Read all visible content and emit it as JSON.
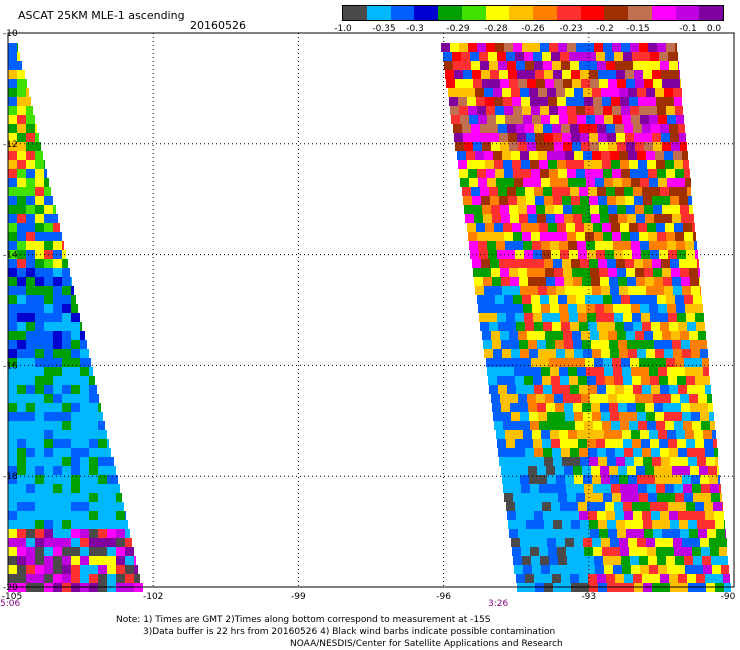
{
  "header": {
    "title": "ASCAT 25KM MLE-1 ascending",
    "date": "20160526"
  },
  "colorbar": {
    "colors": [
      "#4a4a4a",
      "#00b8ff",
      "#0060ff",
      "#0000d0",
      "#00a000",
      "#40e000",
      "#ffff00",
      "#ffc000",
      "#ff8000",
      "#ff3030",
      "#ff0000",
      "#a03000",
      "#c07050",
      "#ff00ff",
      "#c000e0",
      "#8000a0"
    ],
    "labels": [
      "-1.0",
      "-0.35",
      "-0.3",
      "-0.29",
      "-0.28",
      "-0.26",
      "-0.23",
      "-0.2",
      "-0.15",
      "-0.1",
      "0.0"
    ]
  },
  "map": {
    "lat_labels": [
      "-10",
      "-12",
      "-14",
      "-16",
      "-18",
      "-20"
    ],
    "lon_labels": [
      "-105",
      "-102",
      "-99",
      "-96",
      "-93",
      "-90"
    ],
    "time_labels": [
      "5:06",
      "3:26"
    ],
    "gridlines": true
  },
  "notes": {
    "line1": "Note: 1) Times are GMT 2)Times along bottom correspond to measurement at -15S",
    "line2": "3)Data buffer is 22 hrs from 20160526 4) Black wind barbs indicate possible contamination",
    "line3": "NOAA/NESDIS/Center for Satellite Applications and Research"
  }
}
